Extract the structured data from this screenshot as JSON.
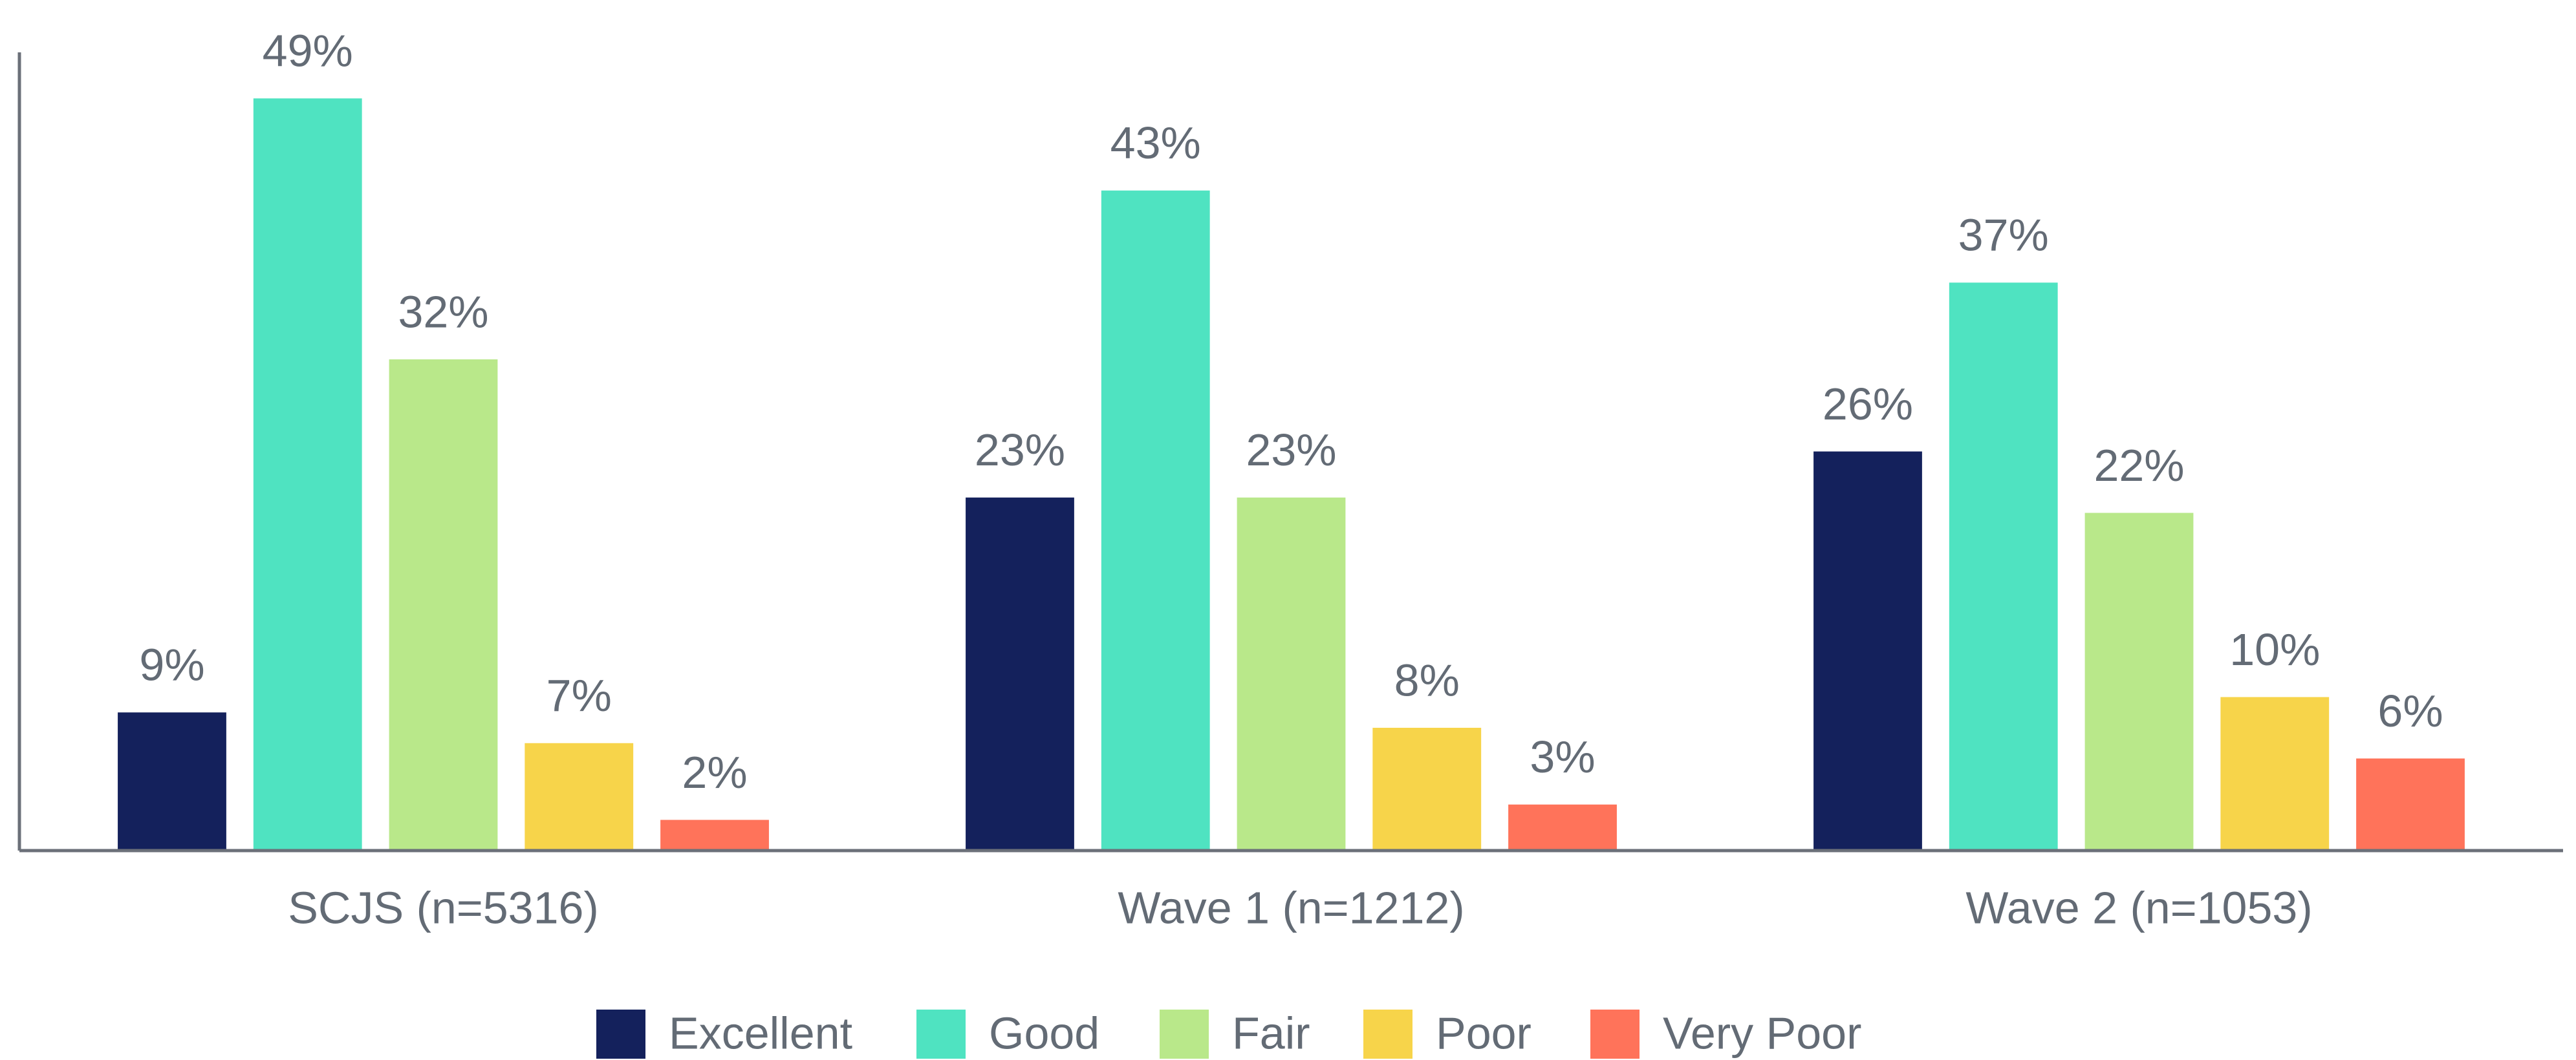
{
  "chart_data": {
    "type": "bar",
    "categories": [
      "SCJS (n=5316)",
      "Wave 1 (n=1212)",
      "Wave 2 (n=1053)"
    ],
    "series": [
      {
        "name": "Excellent",
        "color": "#14215c",
        "values": [
          9,
          23,
          26
        ],
        "value_labels": [
          "9%",
          "23%",
          "26%"
        ]
      },
      {
        "name": "Good",
        "color": "#4fe3c1",
        "values": [
          49,
          43,
          37
        ],
        "value_labels": [
          "49%",
          "43%",
          "37%"
        ]
      },
      {
        "name": "Fair",
        "color": "#b9e88a",
        "values": [
          32,
          23,
          22
        ],
        "value_labels": [
          "32%",
          "23%",
          "22%"
        ]
      },
      {
        "name": "Poor",
        "color": "#f7d44a",
        "values": [
          7,
          8,
          10
        ],
        "value_labels": [
          "7%",
          "8%",
          "10%"
        ]
      },
      {
        "name": "Very Poor",
        "color": "#ff735a",
        "values": [
          2,
          3,
          6
        ],
        "value_labels": [
          "2%",
          "3%",
          "6%"
        ]
      }
    ],
    "ylim": [
      0,
      52
    ],
    "legend": "bottom"
  }
}
